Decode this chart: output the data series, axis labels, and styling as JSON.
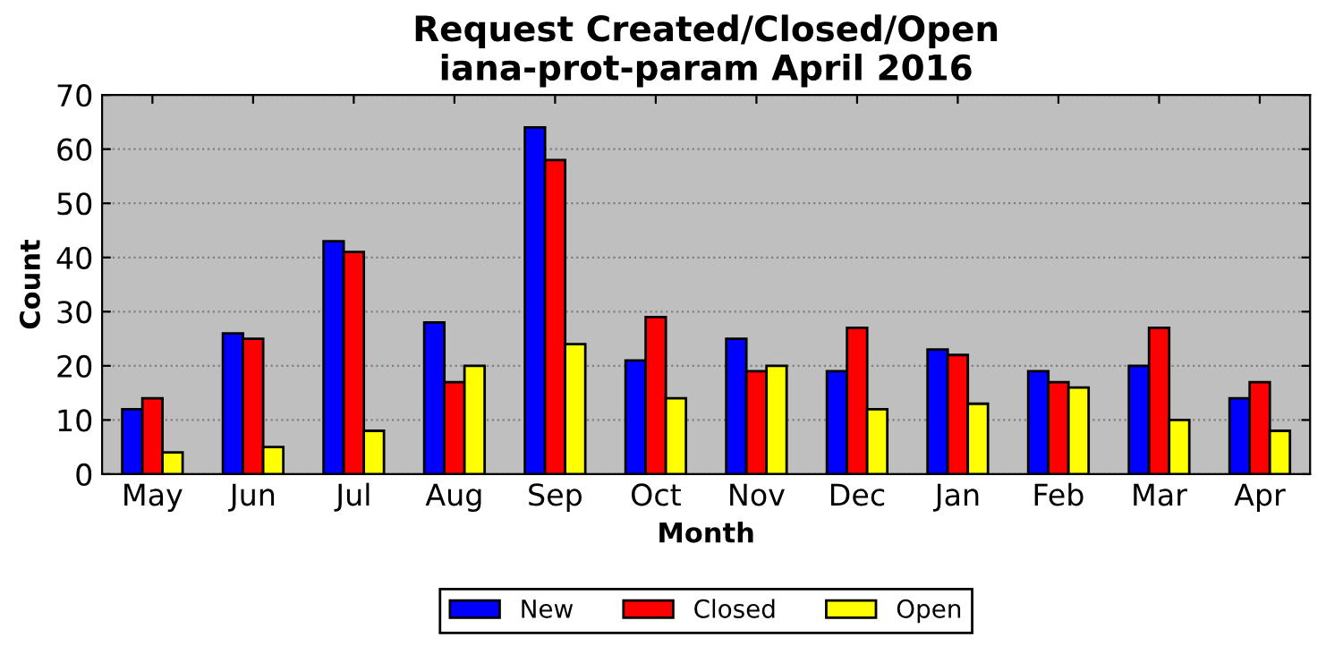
{
  "chart_data": {
    "type": "bar",
    "title": "Request Created/Closed/Open\niana-prot-param April 2016",
    "xlabel": "Month",
    "ylabel": "Count",
    "categories": [
      "May",
      "Jun",
      "Jul",
      "Aug",
      "Sep",
      "Oct",
      "Nov",
      "Dec",
      "Jan",
      "Feb",
      "Mar",
      "Apr"
    ],
    "series": [
      {
        "name": "New",
        "color": "#0000ff",
        "values": [
          12,
          26,
          43,
          28,
          64,
          21,
          25,
          19,
          23,
          19,
          20,
          14
        ]
      },
      {
        "name": "Closed",
        "color": "#ff0000",
        "values": [
          14,
          25,
          41,
          17,
          58,
          29,
          19,
          27,
          22,
          17,
          27,
          17
        ]
      },
      {
        "name": "Open",
        "color": "#ffff00",
        "values": [
          4,
          5,
          8,
          20,
          24,
          14,
          20,
          12,
          13,
          16,
          10,
          8
        ]
      }
    ],
    "ylim": [
      0,
      70
    ],
    "yticks": [
      0,
      10,
      20,
      30,
      40,
      50,
      60,
      70
    ],
    "grid": "y",
    "legend": "bottom"
  }
}
